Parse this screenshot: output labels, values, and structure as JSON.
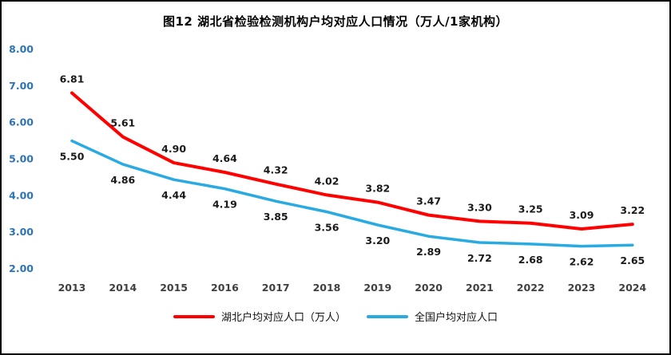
{
  "title": "图12 湖北省检验检测机构户均对应人口情况（万人/1家机构）",
  "chart_data": {
    "type": "line",
    "x": [
      "2013",
      "2014",
      "2015",
      "2016",
      "2017",
      "2018",
      "2019",
      "2020",
      "2021",
      "2022",
      "2023",
      "2024"
    ],
    "series": [
      {
        "name": "湖北户均对应人口（万人）",
        "color": "#FF0000",
        "values": [
          6.81,
          5.61,
          4.9,
          4.64,
          4.32,
          4.02,
          3.82,
          3.47,
          3.3,
          3.25,
          3.09,
          3.22
        ],
        "label_position": "above"
      },
      {
        "name": "全国户均对应人口",
        "color": "#29ABE2",
        "values": [
          5.5,
          4.86,
          4.44,
          4.19,
          3.85,
          3.56,
          3.2,
          2.89,
          2.72,
          2.68,
          2.62,
          2.65
        ],
        "label_position": "below"
      }
    ],
    "ylim": [
      2.0,
      8.0
    ],
    "yticks": [
      "8.00",
      "7.00",
      "6.00",
      "5.00",
      "4.00",
      "3.00",
      "2.00"
    ],
    "xlabel": "",
    "ylabel": "",
    "grid": false,
    "legend_position": "bottom"
  }
}
